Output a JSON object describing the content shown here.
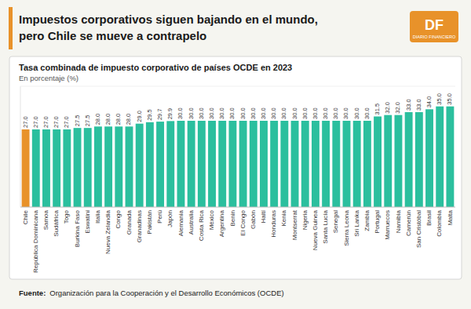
{
  "header": {
    "title_lines": [
      "Impuestos corporativos siguen bajando en el mundo,",
      "pero Chile se mueve a contrapelo"
    ],
    "logo": "DF",
    "logo_subtitle": "DIARIO FINANCIERO",
    "accent_color": "#e8922a"
  },
  "footer": {
    "source_label": "Fuente:",
    "source": "Organización para la Cooperación y el Desarrollo Económicos (OCDE)"
  },
  "chart_data": {
    "type": "bar",
    "title": "Tasa combinada de impuesto corporativo de países OCDE en 2023",
    "subtitle": "En porcentaje (%)",
    "categories": [
      "Chile",
      "República Dominicana",
      "Samoa",
      "Sudáfrica",
      "Togo",
      "Burkina Faso",
      "Eswatini",
      "Italia",
      "Nueva Zelandia",
      "Congo",
      "Granada",
      "Granadinas",
      "Pakistán",
      "Perú",
      "Japón",
      "Alemania",
      "Australia",
      "Costa Rica",
      "México",
      "Argentina",
      "Benin",
      "El Congo",
      "Gabón",
      "Haití",
      "Honduras",
      "Kenia",
      "Montserrat",
      "Nigeria",
      "Nueva Guinea",
      "Santa Lucía",
      "Senegal",
      "Sierra Leona",
      "Sri Lanka",
      "Zambia",
      "Portugal",
      "Marruecos",
      "Namibia",
      "Camerún",
      "San Cristóbal",
      "Brasil",
      "Colombia",
      "Malta"
    ],
    "values": [
      27.0,
      27.0,
      27.0,
      27.0,
      27.0,
      27.5,
      27.5,
      28.0,
      28.0,
      28.0,
      28.0,
      29.0,
      29.5,
      29.7,
      29.9,
      30.0,
      30.0,
      30.0,
      30.0,
      30.0,
      30.0,
      30.0,
      30.0,
      30.0,
      30.0,
      30.0,
      30.0,
      30.0,
      30.0,
      30.0,
      30.0,
      30.0,
      30.0,
      30.0,
      31.5,
      32.0,
      32.0,
      33.0,
      33.0,
      34.0,
      35.0,
      35.0
    ],
    "value_labels": [
      "27.0",
      "27.0",
      "27.0",
      "27.0",
      "27.0",
      "27.5",
      "27.5",
      "28.0",
      "28.0",
      "28.0",
      "28.0",
      "29.0",
      "29.5",
      "29.7",
      "29.9",
      "30.0",
      "30.0",
      "30.0",
      "30.0",
      "30.0",
      "30.0",
      "30.0",
      "30.0",
      "30.0",
      "30.0",
      "30.0",
      "30.0",
      "30.0",
      "30.0",
      "30.0",
      "30.0",
      "30.0",
      "30.0",
      "30.0",
      "31.5",
      "32.0",
      "32.0",
      "33.0",
      "33.0",
      "34.0",
      "35.0",
      "35.0"
    ],
    "colors": [
      "#e8922a",
      "#2bbf9e",
      "#2bbf9e",
      "#2bbf9e",
      "#2bbf9e",
      "#2bbf9e",
      "#2bbf9e",
      "#2bbf9e",
      "#2bbf9e",
      "#2bbf9e",
      "#2bbf9e",
      "#2bbf9e",
      "#2bbf9e",
      "#2bbf9e",
      "#2bbf9e",
      "#2bbf9e",
      "#2bbf9e",
      "#2bbf9e",
      "#2bbf9e",
      "#2bbf9e",
      "#2bbf9e",
      "#2bbf9e",
      "#2bbf9e",
      "#2bbf9e",
      "#2bbf9e",
      "#2bbf9e",
      "#2bbf9e",
      "#2bbf9e",
      "#2bbf9e",
      "#2bbf9e",
      "#2bbf9e",
      "#2bbf9e",
      "#2bbf9e",
      "#2bbf9e",
      "#2bbf9e",
      "#2bbf9e",
      "#2bbf9e",
      "#2bbf9e",
      "#2bbf9e",
      "#2bbf9e",
      "#2bbf9e",
      "#2bbf9e"
    ],
    "ylim": [
      0,
      42
    ],
    "grid": false,
    "data_labels": true,
    "tick_labels": "x"
  }
}
